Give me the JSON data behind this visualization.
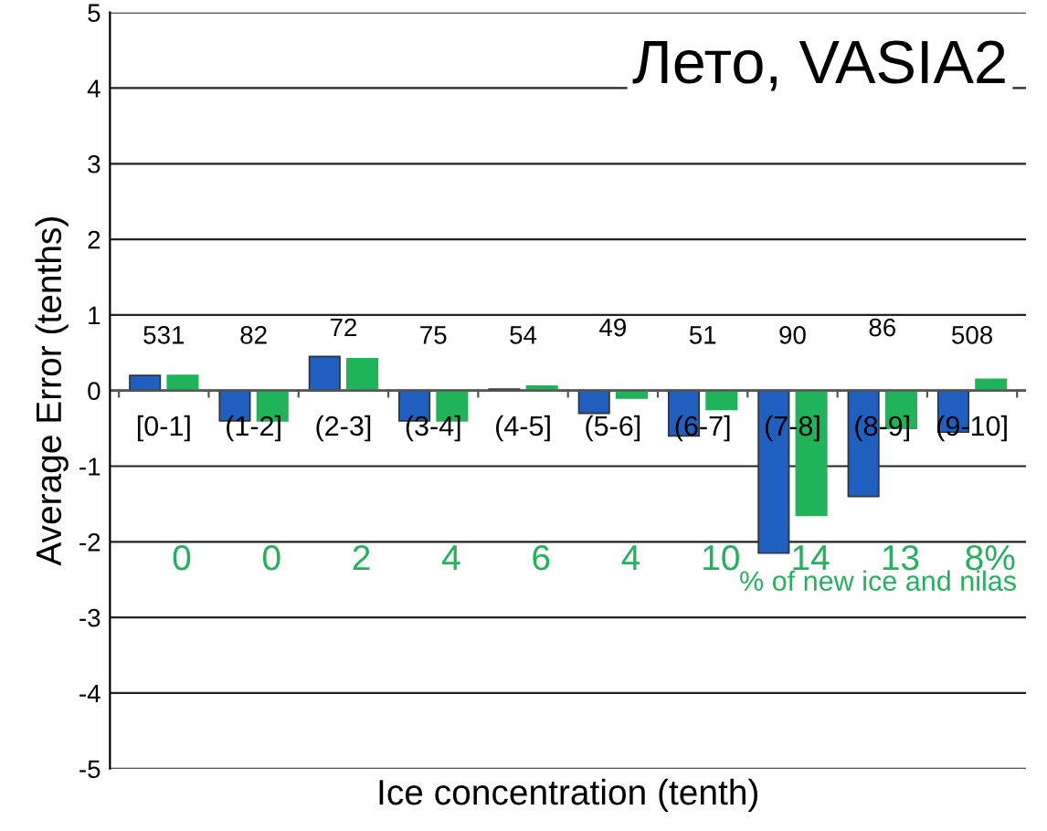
{
  "chart_data": {
    "type": "bar",
    "title": "Лето, VASIA2",
    "xlabel": "Ice concentration (tenth)",
    "ylabel": "Average Error (tenths)",
    "categories": [
      "[0-1]",
      "(1-2]",
      "(2-3]",
      "(3-4]",
      "(4-5]",
      "(5-6]",
      "(6-7]",
      "(7-8]",
      "(8-9]",
      "(9-10]"
    ],
    "series": [
      {
        "color": "#1f5fbf",
        "values": [
          0.2,
          -0.4,
          0.45,
          -0.4,
          0.02,
          -0.3,
          -0.6,
          -2.15,
          -1.4,
          -0.55
        ]
      },
      {
        "color": "#1fb35a",
        "values": [
          0.2,
          -0.4,
          0.42,
          -0.4,
          0.06,
          -0.1,
          -0.25,
          -1.65,
          -0.5,
          0.15
        ]
      }
    ],
    "ylim": [
      -5,
      5
    ],
    "yticks": [
      -5,
      -4,
      -3,
      -2,
      -1,
      0,
      1,
      2,
      3,
      4,
      5
    ],
    "grid": "y",
    "annotations": [
      "531",
      "82",
      "72",
      "75",
      "54",
      "49",
      "51",
      "90",
      "86",
      "508",
      "0",
      "0",
      "2",
      "4",
      "6",
      "4",
      "10",
      "14",
      "13",
      "8%",
      "% of new ice and nilas"
    ]
  }
}
